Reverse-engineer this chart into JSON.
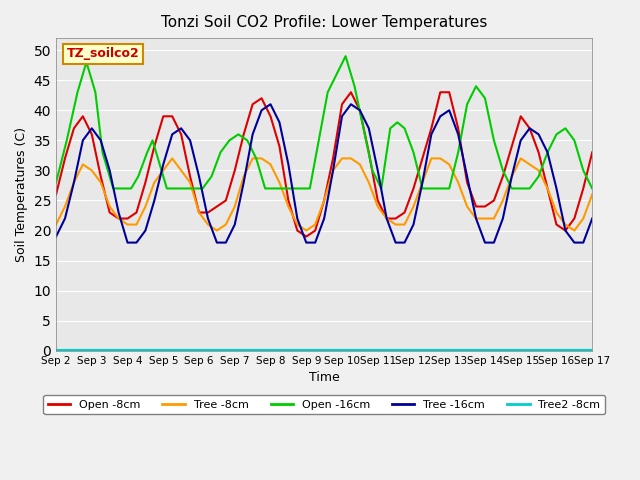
{
  "title": "Tonzi Soil CO2 Profile: Lower Temperatures",
  "ylabel": "Soil Temperatures (C)",
  "xlabel": "Time",
  "watermark": "TZ_soilco2",
  "ylim": [
    0,
    52
  ],
  "yticks": [
    0,
    5,
    10,
    15,
    20,
    25,
    30,
    35,
    40,
    45,
    50
  ],
  "bg_color": "#e8e8e8",
  "plot_bg": "#e8e8e8",
  "series": {
    "open_8cm": {
      "label": "Open -8cm",
      "color": "#dd0000",
      "linewidth": 1.5
    },
    "tree_8cm": {
      "label": "Tree -8cm",
      "color": "#ff9900",
      "linewidth": 1.5
    },
    "open_16cm": {
      "label": "Open -16cm",
      "color": "#00cc00",
      "linewidth": 1.5
    },
    "tree_16cm": {
      "label": "Tree -16cm",
      "color": "#000099",
      "linewidth": 1.5
    },
    "tree2_8cm": {
      "label": "Tree2 -8cm",
      "color": "#00cccc",
      "linewidth": 1.5
    }
  },
  "xtick_labels": [
    "Sep 2",
    "Sep 3",
    "Sep 4",
    "Sep 5",
    "Sep 6",
    "Sep 7",
    "Sep 8",
    "Sep 9",
    "Sep 10",
    "Sep 11",
    "Sep 12",
    "Sep 13",
    "Sep 14",
    "Sep 15",
    "Sep 16",
    "Sep 17"
  ],
  "xtick_positions": [
    0,
    1,
    2,
    3,
    4,
    5,
    6,
    7,
    8,
    9,
    10,
    11,
    12,
    13,
    14,
    15
  ],
  "open_8cm_x": [
    0,
    0.25,
    0.5,
    0.75,
    1.0,
    1.25,
    1.5,
    1.75,
    2.0,
    2.25,
    2.5,
    2.75,
    3.0,
    3.25,
    3.5,
    3.75,
    4.0,
    4.25,
    4.5,
    4.75,
    5.0,
    5.25,
    5.5,
    5.75,
    6.0,
    6.25,
    6.5,
    6.75,
    7.0,
    7.25,
    7.5,
    7.75,
    8.0,
    8.25,
    8.5,
    8.75,
    9.0,
    9.25,
    9.5,
    9.75,
    10.0,
    10.25,
    10.5,
    10.75,
    11.0,
    11.25,
    11.5,
    11.75,
    12.0,
    12.25,
    12.5,
    12.75,
    13.0,
    13.25,
    13.5,
    13.75,
    14.0,
    14.25,
    14.5,
    14.75,
    15.0
  ],
  "open_8cm_y": [
    26,
    32,
    37,
    39,
    36,
    29,
    23,
    22,
    22,
    23,
    28,
    34,
    39,
    39,
    36,
    29,
    23,
    23,
    24,
    25,
    30,
    36,
    41,
    42,
    39,
    34,
    25,
    20,
    19,
    20,
    25,
    32,
    41,
    43,
    40,
    33,
    25,
    22,
    22,
    23,
    27,
    32,
    37,
    43,
    43,
    37,
    28,
    24,
    24,
    25,
    29,
    34,
    39,
    37,
    33,
    27,
    21,
    20,
    22,
    27,
    33
  ],
  "tree_8cm_x": [
    0,
    0.25,
    0.5,
    0.75,
    1.0,
    1.25,
    1.5,
    1.75,
    2.0,
    2.25,
    2.5,
    2.75,
    3.0,
    3.25,
    3.5,
    3.75,
    4.0,
    4.25,
    4.5,
    4.75,
    5.0,
    5.25,
    5.5,
    5.75,
    6.0,
    6.25,
    6.5,
    6.75,
    7.0,
    7.25,
    7.5,
    7.75,
    8.0,
    8.25,
    8.5,
    8.75,
    9.0,
    9.25,
    9.5,
    9.75,
    10.0,
    10.25,
    10.5,
    10.75,
    11.0,
    11.25,
    11.5,
    11.75,
    12.0,
    12.25,
    12.5,
    12.75,
    13.0,
    13.25,
    13.5,
    13.75,
    14.0,
    14.25,
    14.5,
    14.75,
    15.0
  ],
  "tree_8cm_y": [
    21,
    24,
    28,
    31,
    30,
    28,
    24,
    22,
    21,
    21,
    24,
    28,
    30,
    32,
    30,
    28,
    23,
    21,
    20,
    21,
    24,
    29,
    32,
    32,
    31,
    28,
    24,
    21,
    20,
    21,
    25,
    30,
    32,
    32,
    31,
    28,
    24,
    22,
    21,
    21,
    24,
    28,
    32,
    32,
    31,
    28,
    24,
    22,
    22,
    22,
    25,
    29,
    32,
    31,
    30,
    27,
    23,
    21,
    20,
    22,
    26
  ],
  "open_16cm_x": [
    0,
    0.3,
    0.6,
    0.85,
    1.1,
    1.3,
    1.6,
    1.9,
    2.1,
    2.3,
    2.55,
    2.7,
    2.85,
    3.1,
    3.3,
    3.6,
    3.9,
    4.1,
    4.35,
    4.6,
    4.85,
    5.1,
    5.35,
    5.6,
    5.85,
    6.1,
    6.35,
    6.6,
    6.85,
    7.1,
    7.35,
    7.6,
    7.85,
    8.1,
    8.35,
    8.6,
    8.85,
    9.1,
    9.35,
    9.55,
    9.75,
    10.0,
    10.25,
    10.5,
    10.75,
    11.0,
    11.25,
    11.5,
    11.75,
    12.0,
    12.25,
    12.5,
    12.75,
    13.0,
    13.25,
    13.5,
    13.75,
    14.0,
    14.25,
    14.5,
    14.75,
    15.0
  ],
  "open_16cm_y": [
    28,
    35,
    43,
    48,
    43,
    33,
    27,
    27,
    27,
    29,
    33,
    35,
    32,
    27,
    27,
    27,
    27,
    27,
    29,
    33,
    35,
    36,
    35,
    32,
    27,
    27,
    27,
    27,
    27,
    27,
    35,
    43,
    46,
    49,
    44,
    37,
    30,
    27,
    37,
    38,
    37,
    33,
    27,
    27,
    27,
    27,
    33,
    41,
    44,
    42,
    35,
    30,
    27,
    27,
    27,
    29,
    33,
    36,
    37,
    35,
    30,
    27
  ],
  "tree_16cm_x": [
    0,
    0.25,
    0.5,
    0.75,
    1.0,
    1.25,
    1.5,
    1.75,
    2.0,
    2.25,
    2.5,
    2.75,
    3.0,
    3.25,
    3.5,
    3.75,
    4.0,
    4.25,
    4.5,
    4.75,
    5.0,
    5.25,
    5.5,
    5.75,
    6.0,
    6.25,
    6.5,
    6.75,
    7.0,
    7.25,
    7.5,
    7.75,
    8.0,
    8.25,
    8.5,
    8.75,
    9.0,
    9.25,
    9.5,
    9.75,
    10.0,
    10.25,
    10.5,
    10.75,
    11.0,
    11.25,
    11.5,
    11.75,
    12.0,
    12.25,
    12.5,
    12.75,
    13.0,
    13.25,
    13.5,
    13.75,
    14.0,
    14.25,
    14.5,
    14.75,
    15.0
  ],
  "tree_16cm_y": [
    19,
    22,
    28,
    35,
    37,
    35,
    30,
    23,
    18,
    18,
    20,
    25,
    31,
    36,
    37,
    35,
    29,
    22,
    18,
    18,
    21,
    28,
    36,
    40,
    41,
    38,
    31,
    22,
    18,
    18,
    22,
    30,
    39,
    41,
    40,
    37,
    30,
    22,
    18,
    18,
    21,
    28,
    36,
    39,
    40,
    36,
    29,
    22,
    18,
    18,
    22,
    29,
    35,
    37,
    36,
    33,
    27,
    20,
    18,
    18,
    22
  ],
  "tree2_8cm_x": [
    0,
    2,
    4,
    6,
    8,
    10,
    12,
    14,
    15
  ],
  "tree2_8cm_y": [
    0.2,
    0.2,
    0.2,
    0.2,
    0.2,
    0.2,
    0.2,
    0.2,
    0.2
  ]
}
